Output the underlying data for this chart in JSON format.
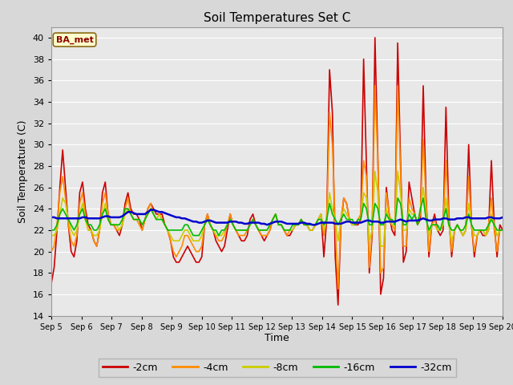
{
  "title": "Soil Temperatures Set C",
  "xlabel": "Time",
  "ylabel": "Soil Temperature (C)",
  "ylim": [
    14,
    41
  ],
  "yticks": [
    14,
    16,
    18,
    20,
    22,
    24,
    26,
    28,
    30,
    32,
    34,
    36,
    38,
    40
  ],
  "legend_label": "BA_met",
  "series_labels": [
    "-2cm",
    "-4cm",
    "-8cm",
    "-16cm",
    "-32cm"
  ],
  "series_colors": [
    "#cc0000",
    "#ff8c00",
    "#cccc00",
    "#00bb00",
    "#0000cc"
  ],
  "series_linewidths": [
    1.2,
    1.2,
    1.2,
    1.2,
    1.8
  ],
  "fig_bg_color": "#d8d8d8",
  "plot_bg_color": "#e8e8e8",
  "grid_color": "#ffffff",
  "x_tick_labels": [
    "Sep 5",
    "Sep 6",
    "Sep 7",
    "Sep 8",
    "Sep 9",
    "Sep 10",
    "Sep 11",
    "Sep 12",
    "Sep 13",
    "Sep 14",
    "Sep 15",
    "Sep 16",
    "Sep 17",
    "Sep 18",
    "Sep 19",
    "Sep 20"
  ],
  "t_2cm": [
    17.0,
    18.5,
    22.0,
    26.0,
    29.5,
    26.0,
    22.5,
    20.0,
    19.5,
    21.0,
    25.5,
    26.5,
    24.0,
    22.5,
    22.0,
    21.0,
    20.5,
    22.0,
    25.5,
    26.5,
    23.5,
    22.5,
    22.5,
    22.0,
    21.5,
    22.5,
    24.5,
    25.5,
    24.0,
    23.5,
    23.5,
    23.0,
    22.0,
    23.0,
    24.0,
    24.5,
    24.0,
    23.5,
    23.5,
    23.5,
    22.5,
    22.0,
    21.0,
    19.5,
    19.0,
    19.0,
    19.5,
    20.0,
    20.5,
    20.0,
    19.5,
    19.0,
    19.0,
    19.5,
    22.5,
    23.5,
    22.5,
    22.0,
    21.0,
    20.5,
    20.0,
    20.5,
    22.0,
    23.5,
    22.5,
    22.0,
    21.5,
    21.0,
    21.0,
    21.5,
    23.0,
    23.5,
    22.5,
    22.0,
    21.5,
    21.0,
    21.5,
    22.0,
    23.0,
    23.5,
    22.5,
    22.5,
    22.0,
    21.5,
    21.5,
    22.0,
    22.5,
    22.5,
    23.0,
    22.5,
    22.5,
    22.0,
    22.0,
    22.5,
    23.0,
    23.5,
    19.5,
    23.0,
    37.0,
    33.0,
    19.5,
    15.0,
    22.5,
    25.0,
    24.5,
    23.0,
    22.5,
    22.5,
    22.5,
    23.0,
    38.0,
    28.0,
    18.0,
    21.5,
    40.0,
    29.0,
    16.0,
    17.5,
    26.0,
    23.5,
    22.0,
    21.5,
    39.5,
    28.5,
    19.0,
    20.0,
    26.5,
    25.0,
    23.5,
    22.5,
    23.0,
    35.5,
    25.0,
    19.5,
    22.5,
    23.5,
    22.0,
    21.5,
    22.0,
    33.5,
    23.5,
    19.5,
    22.0,
    22.5,
    22.0,
    21.5,
    22.0,
    30.0,
    22.5,
    19.5,
    21.5,
    22.0,
    21.5,
    21.5,
    22.0,
    28.5,
    22.5,
    19.5,
    22.5,
    22.0
  ],
  "t_4cm": [
    20.0,
    20.5,
    22.5,
    25.5,
    27.0,
    25.0,
    22.5,
    21.0,
    20.5,
    21.5,
    24.5,
    25.5,
    23.5,
    22.0,
    22.0,
    21.0,
    20.5,
    22.0,
    24.5,
    25.5,
    23.5,
    22.5,
    22.5,
    22.0,
    22.0,
    22.5,
    24.0,
    25.0,
    23.5,
    23.0,
    23.0,
    22.5,
    22.0,
    23.0,
    24.0,
    24.5,
    23.5,
    23.0,
    23.5,
    23.0,
    22.5,
    22.0,
    21.0,
    20.0,
    19.5,
    20.0,
    20.5,
    21.5,
    21.5,
    21.0,
    20.5,
    20.0,
    20.0,
    20.5,
    22.5,
    23.5,
    22.5,
    22.0,
    21.5,
    21.0,
    21.0,
    21.5,
    22.5,
    23.5,
    22.5,
    22.0,
    21.5,
    21.5,
    21.5,
    22.0,
    22.5,
    23.0,
    22.5,
    22.0,
    21.5,
    21.5,
    21.5,
    22.0,
    23.0,
    23.5,
    22.5,
    22.5,
    22.0,
    21.5,
    22.0,
    22.0,
    22.5,
    22.5,
    23.0,
    22.5,
    22.5,
    22.0,
    22.0,
    22.5,
    23.0,
    23.5,
    21.5,
    23.0,
    33.0,
    30.0,
    22.5,
    16.5,
    23.0,
    25.0,
    24.5,
    23.0,
    22.5,
    22.5,
    23.0,
    23.5,
    28.5,
    27.0,
    18.5,
    22.0,
    35.5,
    28.5,
    18.0,
    18.5,
    25.5,
    23.5,
    22.5,
    22.0,
    35.5,
    27.5,
    20.5,
    20.5,
    25.0,
    24.0,
    23.5,
    22.5,
    23.5,
    30.5,
    24.5,
    20.0,
    22.5,
    23.0,
    22.0,
    22.0,
    22.5,
    28.5,
    23.0,
    20.0,
    22.0,
    22.5,
    22.0,
    21.5,
    22.0,
    27.0,
    22.5,
    20.0,
    21.5,
    22.0,
    22.0,
    21.5,
    22.5,
    25.0,
    22.0,
    20.0,
    22.0,
    22.0
  ],
  "t_8cm": [
    21.5,
    21.5,
    22.0,
    23.5,
    25.0,
    24.5,
    23.0,
    22.0,
    21.5,
    22.0,
    23.5,
    24.5,
    23.0,
    22.0,
    22.0,
    21.5,
    21.5,
    22.0,
    23.5,
    24.5,
    23.0,
    22.5,
    22.5,
    22.5,
    22.0,
    22.5,
    23.5,
    24.0,
    23.5,
    23.0,
    23.0,
    23.0,
    22.5,
    23.0,
    23.5,
    24.0,
    23.5,
    23.0,
    23.5,
    23.0,
    22.5,
    22.0,
    21.5,
    21.0,
    21.0,
    21.0,
    21.5,
    22.0,
    22.0,
    21.5,
    21.0,
    21.0,
    21.0,
    21.5,
    22.5,
    23.0,
    22.5,
    22.0,
    21.5,
    21.5,
    21.5,
    22.0,
    22.5,
    23.0,
    22.5,
    22.0,
    22.0,
    22.0,
    22.0,
    22.0,
    22.5,
    23.0,
    22.5,
    22.0,
    22.0,
    22.0,
    22.0,
    22.5,
    23.0,
    23.5,
    22.5,
    22.5,
    22.0,
    22.0,
    22.0,
    22.0,
    22.5,
    22.5,
    23.0,
    22.5,
    22.5,
    22.0,
    22.0,
    22.5,
    23.0,
    23.5,
    22.0,
    23.0,
    25.5,
    24.0,
    23.0,
    21.0,
    23.0,
    24.0,
    23.5,
    23.0,
    22.5,
    22.5,
    23.0,
    23.0,
    25.5,
    25.0,
    21.0,
    22.0,
    27.5,
    25.5,
    20.5,
    20.5,
    24.0,
    23.0,
    22.5,
    22.5,
    27.5,
    25.5,
    22.0,
    22.0,
    24.0,
    23.5,
    23.5,
    22.5,
    24.0,
    26.0,
    23.5,
    21.5,
    22.5,
    22.5,
    22.0,
    22.0,
    22.5,
    25.0,
    22.5,
    21.0,
    22.0,
    22.5,
    22.0,
    21.5,
    22.0,
    24.5,
    22.5,
    21.5,
    21.5,
    22.0,
    22.0,
    21.5,
    22.0,
    23.5,
    22.5,
    21.5,
    22.0,
    22.0
  ],
  "t_16cm": [
    22.0,
    22.0,
    22.5,
    23.5,
    24.0,
    23.5,
    23.0,
    22.5,
    22.0,
    22.5,
    23.5,
    24.0,
    23.0,
    22.5,
    22.5,
    22.0,
    22.0,
    22.5,
    23.5,
    24.0,
    23.0,
    22.5,
    22.5,
    22.5,
    22.5,
    23.0,
    24.0,
    24.0,
    23.5,
    23.0,
    23.0,
    23.0,
    22.5,
    23.0,
    23.5,
    24.0,
    23.5,
    23.0,
    23.0,
    23.0,
    22.5,
    22.0,
    22.0,
    22.0,
    22.0,
    22.0,
    22.0,
    22.5,
    22.5,
    22.0,
    21.5,
    21.5,
    21.5,
    22.0,
    22.5,
    23.0,
    22.5,
    22.0,
    22.0,
    21.5,
    22.0,
    22.0,
    22.5,
    23.0,
    22.5,
    22.0,
    22.0,
    22.0,
    22.0,
    22.0,
    22.5,
    23.0,
    22.5,
    22.0,
    22.0,
    22.0,
    22.0,
    22.5,
    23.0,
    23.5,
    22.5,
    22.5,
    22.0,
    22.0,
    22.0,
    22.5,
    22.5,
    22.5,
    23.0,
    22.5,
    22.5,
    22.5,
    22.5,
    22.5,
    23.0,
    23.0,
    22.5,
    23.0,
    24.5,
    23.5,
    23.0,
    22.5,
    23.0,
    23.5,
    23.0,
    23.0,
    23.0,
    22.5,
    23.0,
    23.0,
    24.5,
    24.0,
    22.5,
    22.5,
    24.5,
    24.0,
    22.5,
    22.5,
    23.5,
    23.0,
    23.0,
    22.5,
    25.0,
    24.5,
    22.5,
    22.5,
    23.5,
    23.0,
    23.5,
    22.5,
    24.0,
    25.0,
    23.0,
    22.0,
    22.5,
    22.5,
    22.5,
    22.0,
    23.0,
    24.0,
    22.5,
    22.0,
    22.0,
    22.5,
    22.0,
    22.0,
    22.5,
    23.5,
    22.5,
    22.0,
    22.0,
    22.0,
    22.0,
    22.0,
    22.5,
    23.0,
    22.5,
    22.0,
    22.0,
    22.0
  ],
  "t_32cm": [
    23.2,
    23.2,
    23.1,
    23.1,
    23.1,
    23.1,
    23.1,
    23.1,
    23.1,
    23.1,
    23.1,
    23.2,
    23.2,
    23.1,
    23.1,
    23.1,
    23.1,
    23.1,
    23.2,
    23.3,
    23.3,
    23.2,
    23.2,
    23.2,
    23.2,
    23.3,
    23.5,
    23.7,
    23.7,
    23.6,
    23.5,
    23.5,
    23.5,
    23.5,
    23.7,
    23.9,
    23.9,
    23.8,
    23.7,
    23.7,
    23.6,
    23.5,
    23.4,
    23.3,
    23.2,
    23.2,
    23.1,
    23.1,
    23.0,
    22.9,
    22.8,
    22.8,
    22.7,
    22.7,
    22.8,
    22.9,
    22.9,
    22.8,
    22.7,
    22.7,
    22.7,
    22.7,
    22.7,
    22.8,
    22.8,
    22.8,
    22.7,
    22.7,
    22.6,
    22.6,
    22.7,
    22.7,
    22.7,
    22.7,
    22.6,
    22.6,
    22.5,
    22.6,
    22.7,
    22.8,
    22.8,
    22.8,
    22.7,
    22.6,
    22.6,
    22.6,
    22.6,
    22.6,
    22.7,
    22.7,
    22.6,
    22.6,
    22.5,
    22.5,
    22.6,
    22.7,
    22.7,
    22.7,
    22.7,
    22.7,
    22.6,
    22.6,
    22.6,
    22.7,
    22.8,
    22.8,
    22.7,
    22.7,
    22.7,
    22.7,
    22.8,
    22.9,
    22.9,
    22.8,
    22.8,
    22.8,
    22.7,
    22.7,
    22.8,
    22.8,
    22.8,
    22.8,
    22.9,
    23.0,
    22.9,
    22.8,
    22.9,
    22.9,
    22.9,
    22.9,
    23.0,
    23.1,
    23.0,
    22.9,
    22.9,
    23.0,
    23.0,
    23.0,
    23.1,
    23.1,
    23.0,
    23.0,
    23.0,
    23.1,
    23.1,
    23.1,
    23.2,
    23.2,
    23.1,
    23.1,
    23.1,
    23.1,
    23.1,
    23.1,
    23.2,
    23.2,
    23.1,
    23.1,
    23.1,
    23.2
  ]
}
